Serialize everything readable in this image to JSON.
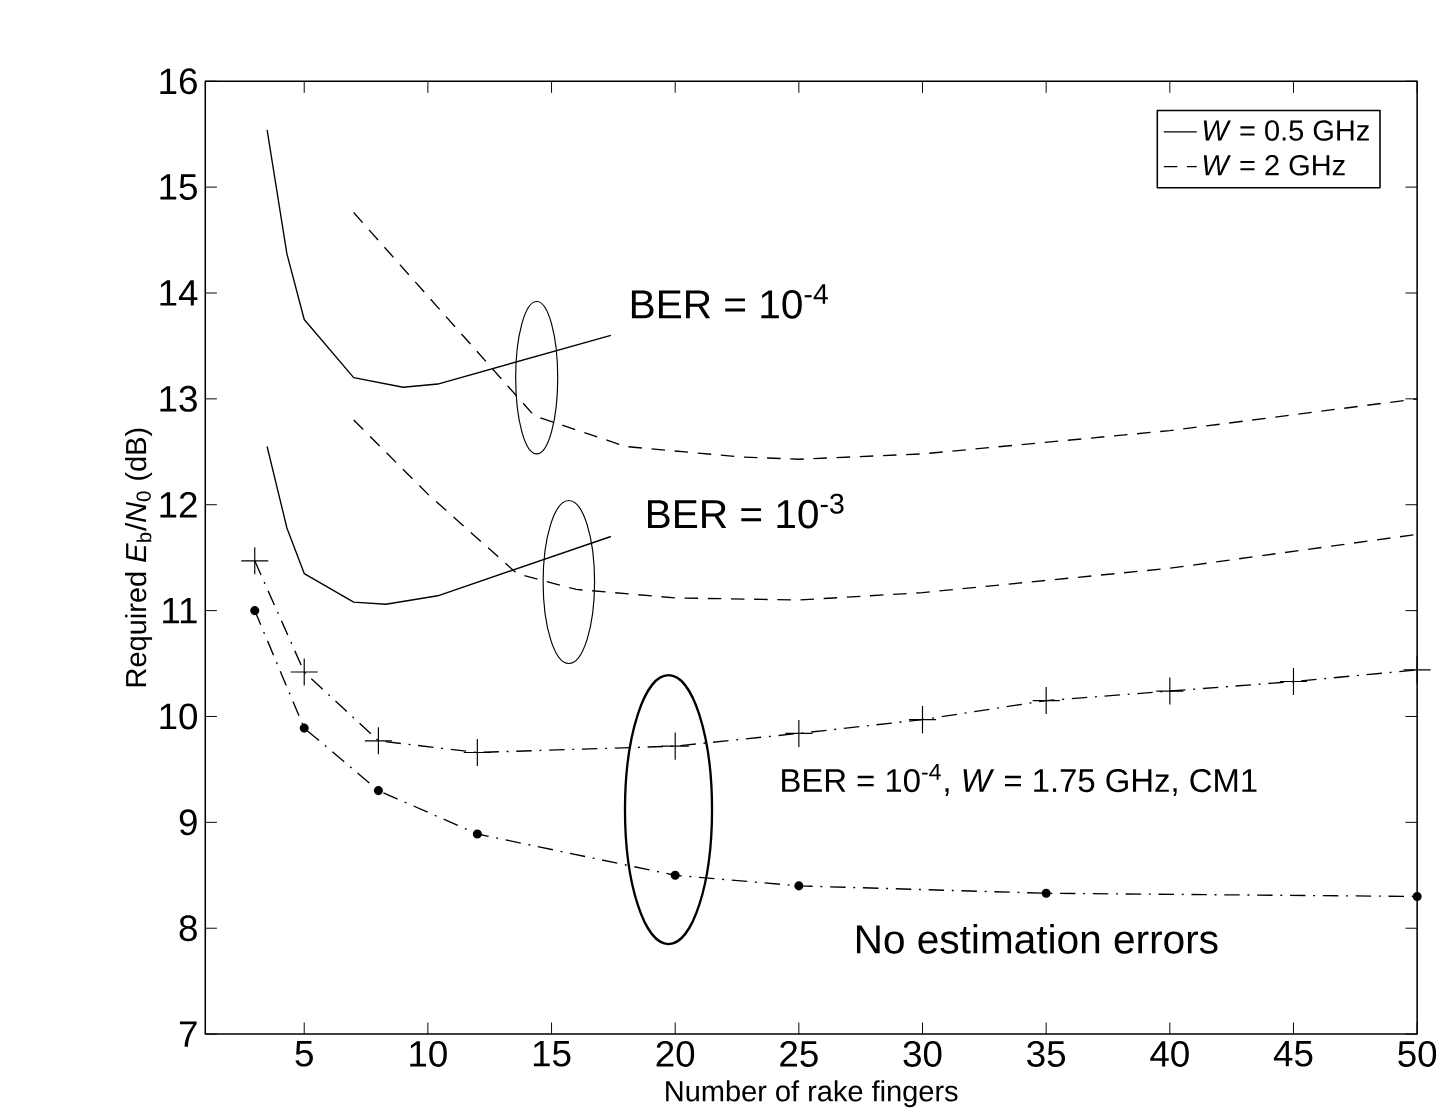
{
  "chart_data": {
    "type": "line",
    "xlabel": "Number of rake fingers",
    "ylabel": "Required *E*$_{b}$/*N*$_{0}$ (dB)",
    "xlim": [
      1,
      50
    ],
    "ylim": [
      7,
      16
    ],
    "xticks": [
      5,
      10,
      15,
      20,
      25,
      30,
      35,
      40,
      45,
      50
    ],
    "yticks": [
      7,
      8,
      9,
      10,
      11,
      12,
      13,
      14,
      15,
      16
    ],
    "legend": "top right",
    "grid": false,
    "series": [
      {
        "name": "*W* = 0.5 GHz",
        "color": "#000000",
        "line_style": "solid",
        "marker": "none",
        "x": [
          3.5,
          4.3,
          5,
          7,
          9,
          10.4,
          17.4
        ],
        "values": [
          15.54,
          14.37,
          13.75,
          13.2,
          13.11,
          13.14,
          13.6
        ]
      },
      {
        "name": "*W* = 2 GHz",
        "color": "#000000",
        "line_style": "dashed",
        "marker": "none",
        "x": [
          7,
          10,
          14.3,
          18,
          22.7,
          25,
          30,
          40,
          50
        ],
        "values": [
          14.76,
          13.97,
          12.84,
          12.55,
          12.45,
          12.43,
          12.48,
          12.7,
          13.0
        ]
      },
      {
        "color": "#000000",
        "line_style": "solid",
        "marker": "none",
        "x": [
          3.5,
          4.3,
          5,
          7,
          8.3,
          10.4,
          17.4
        ],
        "values": [
          12.55,
          11.78,
          11.35,
          11.08,
          11.06,
          11.14,
          11.7
        ]
      },
      {
        "color": "#000000",
        "line_style": "dashed",
        "marker": "none",
        "x": [
          7,
          10,
          13.6,
          16,
          20,
          25,
          30,
          40,
          50
        ],
        "values": [
          12.8,
          12.1,
          11.35,
          11.2,
          11.12,
          11.1,
          11.17,
          11.4,
          11.72
        ]
      },
      {
        "color": "#000000",
        "line_style": "dashdot",
        "marker": "cross",
        "x": [
          3,
          5,
          8,
          12,
          20,
          25,
          30,
          35,
          40,
          45,
          50
        ],
        "values": [
          11.47,
          10.42,
          9.77,
          9.66,
          9.72,
          9.84,
          9.97,
          10.15,
          10.24,
          10.33,
          10.44
        ]
      },
      {
        "color": "#000000",
        "line_style": "dashdot",
        "marker": "circle",
        "x": [
          3,
          5,
          8,
          12,
          20,
          25,
          35,
          50
        ],
        "values": [
          11.0,
          9.89,
          9.3,
          8.89,
          8.5,
          8.4,
          8.33,
          8.3
        ]
      }
    ],
    "annotations": [
      "BER = 10$^{-4}$",
      "BER = 10$^{-3}$",
      "BER = 10$^{-4}$, *W* = 1.75 GHz, CM1",
      "No estimation errors"
    ]
  }
}
